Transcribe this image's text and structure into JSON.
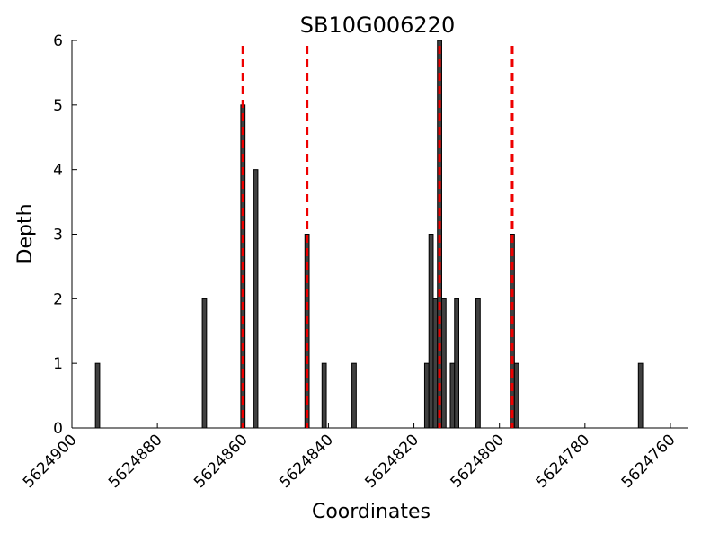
{
  "chart_data": {
    "type": "bar",
    "title": "SB10G006220",
    "x_label": "Coordinates",
    "y_label": "Depth",
    "x": [
      5624894,
      5624869,
      5624860,
      5624857,
      5624845,
      5624841,
      5624834,
      5624817,
      5624816,
      5624815,
      5624814,
      5624813,
      5624811,
      5624810,
      5624805,
      5624797,
      5624796,
      5624767
    ],
    "values": [
      1,
      2,
      5,
      4,
      3,
      1,
      1,
      1,
      3,
      2,
      6,
      2,
      1,
      2,
      2,
      3,
      1,
      1
    ],
    "color": "#404040",
    "vlines": [
      5624860,
      5624845,
      5624814,
      5624797
    ],
    "vline_color": "#ee0000",
    "xlim": [
      5624900,
      5624756
    ],
    "xticks": [
      5624900,
      5624880,
      5624860,
      5624840,
      5624820,
      5624800,
      5624780,
      5624760
    ],
    "ylim": [
      0,
      6
    ],
    "yticks": [
      0,
      1,
      2,
      3,
      4,
      5,
      6
    ]
  }
}
